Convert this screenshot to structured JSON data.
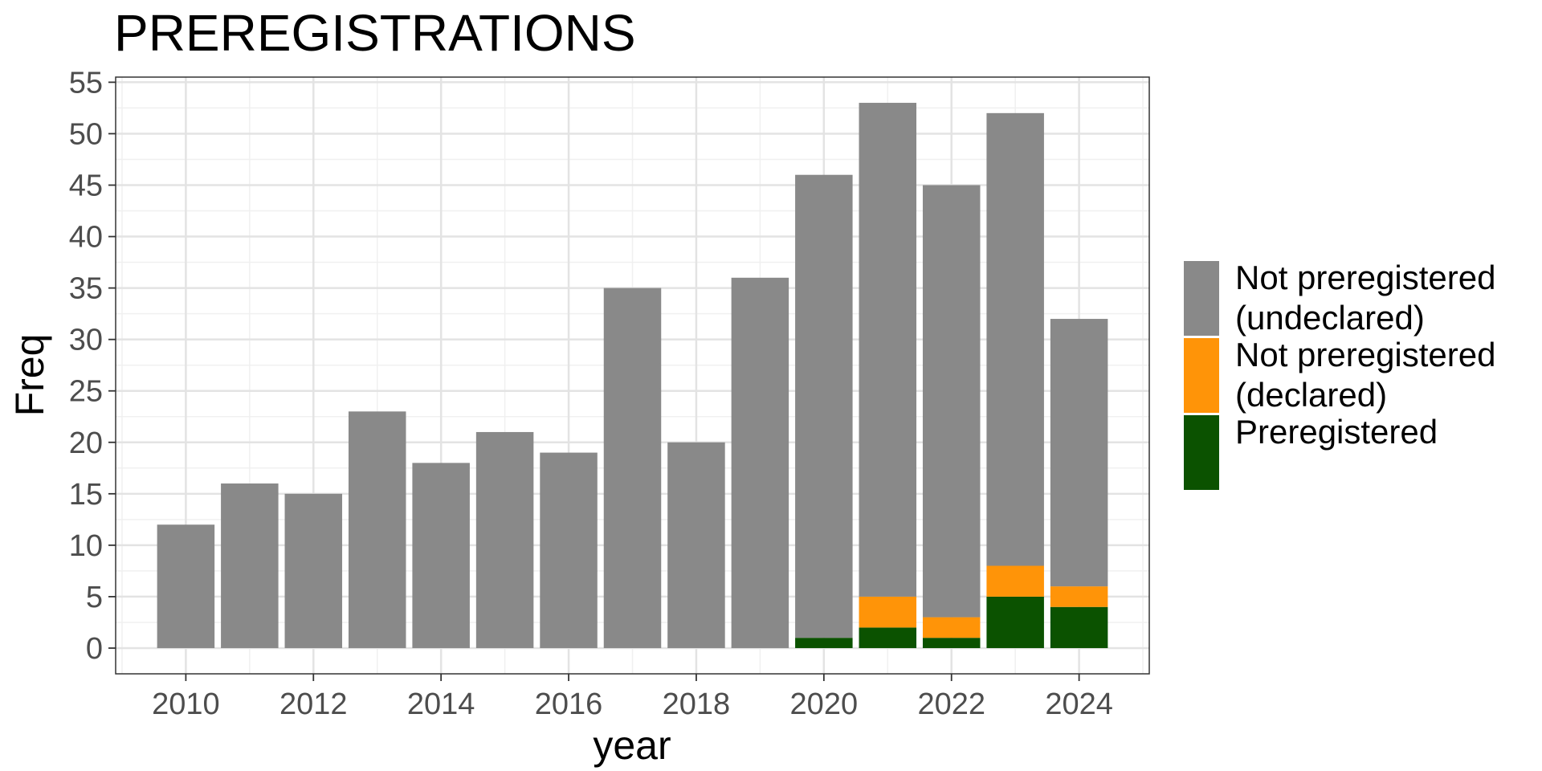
{
  "chart_data": {
    "type": "bar",
    "stacked": true,
    "title": "PREREGISTRATIONS",
    "xlabel": "year",
    "ylabel": "Freq",
    "categories": [
      2010,
      2011,
      2012,
      2013,
      2014,
      2015,
      2016,
      2017,
      2018,
      2019,
      2020,
      2021,
      2022,
      2023,
      2024
    ],
    "x_ticks": [
      "2010",
      "2012",
      "2014",
      "2016",
      "2018",
      "2020",
      "2022",
      "2024"
    ],
    "y_ticks": [
      "0",
      "5",
      "10",
      "15",
      "20",
      "25",
      "30",
      "35",
      "40",
      "45",
      "50",
      "55"
    ],
    "ylim": [
      -2.5,
      55.5
    ],
    "xlim": [
      2008.9,
      2025.1
    ],
    "grid": true,
    "legend_position": "right",
    "series": [
      {
        "name": "Preregistered",
        "color": "#0b5200",
        "values": [
          0,
          0,
          0,
          0,
          0,
          0,
          0,
          0,
          0,
          0,
          1,
          2,
          1,
          5,
          4
        ]
      },
      {
        "name": "Not preregistered (declared)",
        "color": "#ff9408",
        "values": [
          0,
          0,
          0,
          0,
          0,
          0,
          0,
          0,
          0,
          0,
          0,
          3,
          2,
          3,
          2
        ]
      },
      {
        "name": "Not preregistered (undeclared)",
        "color": "#898989",
        "values": [
          12,
          16,
          15,
          23,
          18,
          21,
          19,
          35,
          20,
          36,
          45,
          48,
          42,
          44,
          26
        ]
      }
    ],
    "legend": [
      {
        "lines": [
          "Not preregistered",
          "(undeclared)"
        ],
        "color": "#898989"
      },
      {
        "lines": [
          "Not preregistered",
          "(declared)"
        ],
        "color": "#ff9408"
      },
      {
        "lines": [
          "Preregistered"
        ],
        "color": "#0b5200"
      }
    ]
  }
}
